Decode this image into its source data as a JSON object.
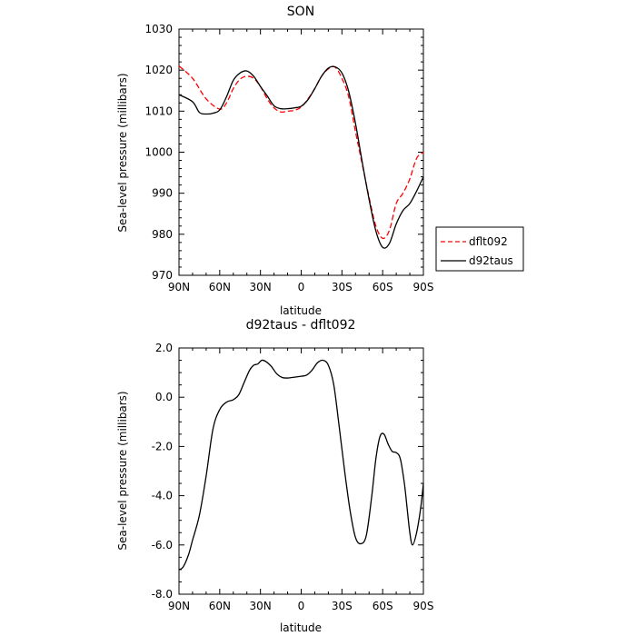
{
  "chart_data": [
    {
      "type": "line",
      "title": "SON",
      "xlabel": "latitude",
      "ylabel": "Sea-level pressure (millibars)",
      "xlim": [
        90,
        -90
      ],
      "ylim": [
        970,
        1030
      ],
      "x_ticks": [
        90,
        60,
        30,
        0,
        -30,
        -60,
        -90
      ],
      "x_tick_labels": [
        "90N",
        "60N",
        "30N",
        "0",
        "30S",
        "60S",
        "90S"
      ],
      "y_ticks": [
        970,
        980,
        990,
        1000,
        1010,
        1020,
        1030
      ],
      "y_tick_labels": [
        "970",
        "980",
        "990",
        "1000",
        "1010",
        "1020",
        "1030"
      ],
      "grid": false,
      "legend_position": "outside-right",
      "series": [
        {
          "name": "dflt092",
          "color": "#ff0000",
          "dash": "dashed",
          "x": [
            90,
            80,
            70,
            60,
            55,
            50,
            45,
            40,
            35,
            30,
            25,
            20,
            15,
            10,
            5,
            0,
            -5,
            -10,
            -15,
            -20,
            -25,
            -30,
            -35,
            -40,
            -45,
            -50,
            -55,
            -60,
            -65,
            -70,
            -75,
            -80,
            -85,
            -90
          ],
          "y": [
            1021,
            1018,
            1013,
            1010.5,
            1012,
            1015.5,
            1017.8,
            1018.5,
            1018,
            1016,
            1013,
            1010.8,
            1009.8,
            1010,
            1010.2,
            1011,
            1013,
            1015.5,
            1018.5,
            1020.3,
            1020.7,
            1018,
            1013.5,
            1005,
            997,
            989,
            982,
            979,
            981,
            987.5,
            990,
            993.5,
            998.5,
            1000
          ]
        },
        {
          "name": "d92taus",
          "color": "#000000",
          "dash": "solid",
          "x": [
            90,
            80,
            75,
            70,
            65,
            60,
            55,
            50,
            45,
            40,
            35,
            30,
            25,
            20,
            15,
            10,
            5,
            0,
            -5,
            -10,
            -15,
            -20,
            -25,
            -30,
            -35,
            -40,
            -45,
            -50,
            -55,
            -60,
            -65,
            -70,
            -75,
            -80,
            -85,
            -90
          ],
          "y": [
            1014,
            1012.3,
            1009.7,
            1009.3,
            1009.5,
            1010.3,
            1013.5,
            1017.5,
            1019.3,
            1019.8,
            1018.5,
            1016,
            1013.7,
            1011.3,
            1010.6,
            1010.6,
            1010.8,
            1011.2,
            1012.8,
            1015.5,
            1018.5,
            1020.5,
            1020.8,
            1019.3,
            1014.8,
            1007,
            997.5,
            988.5,
            980.8,
            976.8,
            977.8,
            982.5,
            985.8,
            987.5,
            990.5,
            994
          ]
        }
      ]
    },
    {
      "type": "line",
      "title": "d92taus - dflt092",
      "xlabel": "latitude",
      "ylabel": "Sea-level pressure (millibars)",
      "xlim": [
        90,
        -90
      ],
      "ylim": [
        -8,
        2
      ],
      "x_ticks": [
        90,
        60,
        30,
        0,
        -30,
        -60,
        -90
      ],
      "x_tick_labels": [
        "90N",
        "60N",
        "30N",
        "0",
        "30S",
        "60S",
        "90S"
      ],
      "y_ticks": [
        -8,
        -6,
        -4,
        -2,
        0,
        2
      ],
      "y_tick_labels": [
        "-8.0",
        "-6.0",
        "-4.0",
        "-2.0",
        "0.0",
        "2.0"
      ],
      "grid": false,
      "series": [
        {
          "color": "#000000",
          "dash": "solid",
          "x": [
            90,
            87,
            83,
            80,
            75,
            70,
            65,
            60,
            55,
            50,
            46,
            42,
            38,
            35,
            32,
            29,
            26,
            22,
            18,
            14,
            10,
            7,
            4,
            0,
            -4,
            -8,
            -12,
            -16,
            -20,
            -24,
            -28,
            -32,
            -36,
            -40,
            -44,
            -48,
            -52,
            -55,
            -58,
            -61,
            -64,
            -67,
            -70,
            -73,
            -76,
            -78,
            -80,
            -82,
            -85,
            -88,
            -90
          ],
          "y": [
            -7,
            -6.9,
            -6.4,
            -5.8,
            -4.8,
            -3.2,
            -1.3,
            -0.5,
            -0.2,
            -0.1,
            0.1,
            0.6,
            1.1,
            1.3,
            1.35,
            1.5,
            1.45,
            1.25,
            0.95,
            0.8,
            0.78,
            0.8,
            0.82,
            0.85,
            0.9,
            1.1,
            1.4,
            1.5,
            1.3,
            0.5,
            -1.2,
            -3,
            -4.6,
            -5.7,
            -5.95,
            -5.6,
            -4,
            -2.5,
            -1.6,
            -1.5,
            -1.9,
            -2.2,
            -2.25,
            -2.5,
            -3.5,
            -4.5,
            -5.5,
            -6.0,
            -5.5,
            -4.5,
            -3.5
          ]
        }
      ]
    }
  ]
}
